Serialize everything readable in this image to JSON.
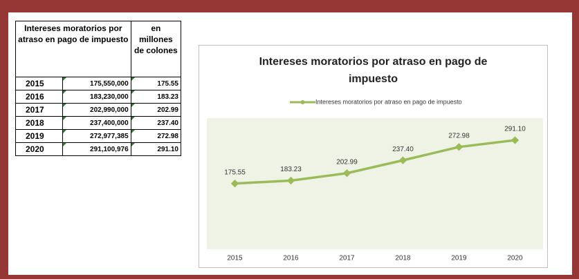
{
  "table": {
    "header": [
      "Intereses moratorios por atraso en pago de impuesto",
      "en millones de colones"
    ],
    "rows": [
      [
        "2015",
        "175,550,000",
        "175.55"
      ],
      [
        "2016",
        "183,230,000",
        "183.23"
      ],
      [
        "2017",
        "202,990,000",
        "202.99"
      ],
      [
        "2018",
        "237,400,000",
        "237.40"
      ],
      [
        "2019",
        "272,977,385",
        "272.98"
      ],
      [
        "2020",
        "291,100,976",
        "291.10"
      ]
    ]
  },
  "chart_data": {
    "type": "line",
    "title": "Intereses moratorios por atraso en pago de impuesto",
    "categories": [
      "2015",
      "2016",
      "2017",
      "2018",
      "2019",
      "2020"
    ],
    "series": [
      {
        "name": "Intereses moratorios por atraso en pago de impuesto",
        "color": "#9bbb59",
        "values": [
          175.55,
          183.23,
          202.99,
          237.4,
          272.98,
          291.1
        ],
        "value_labels": [
          "175.55",
          "183.23",
          "202.99",
          "237.40",
          "272.98",
          "291.10"
        ]
      }
    ],
    "ylim": [
      0,
      350
    ],
    "legend": "top",
    "plot_background": "#eef3e6"
  }
}
